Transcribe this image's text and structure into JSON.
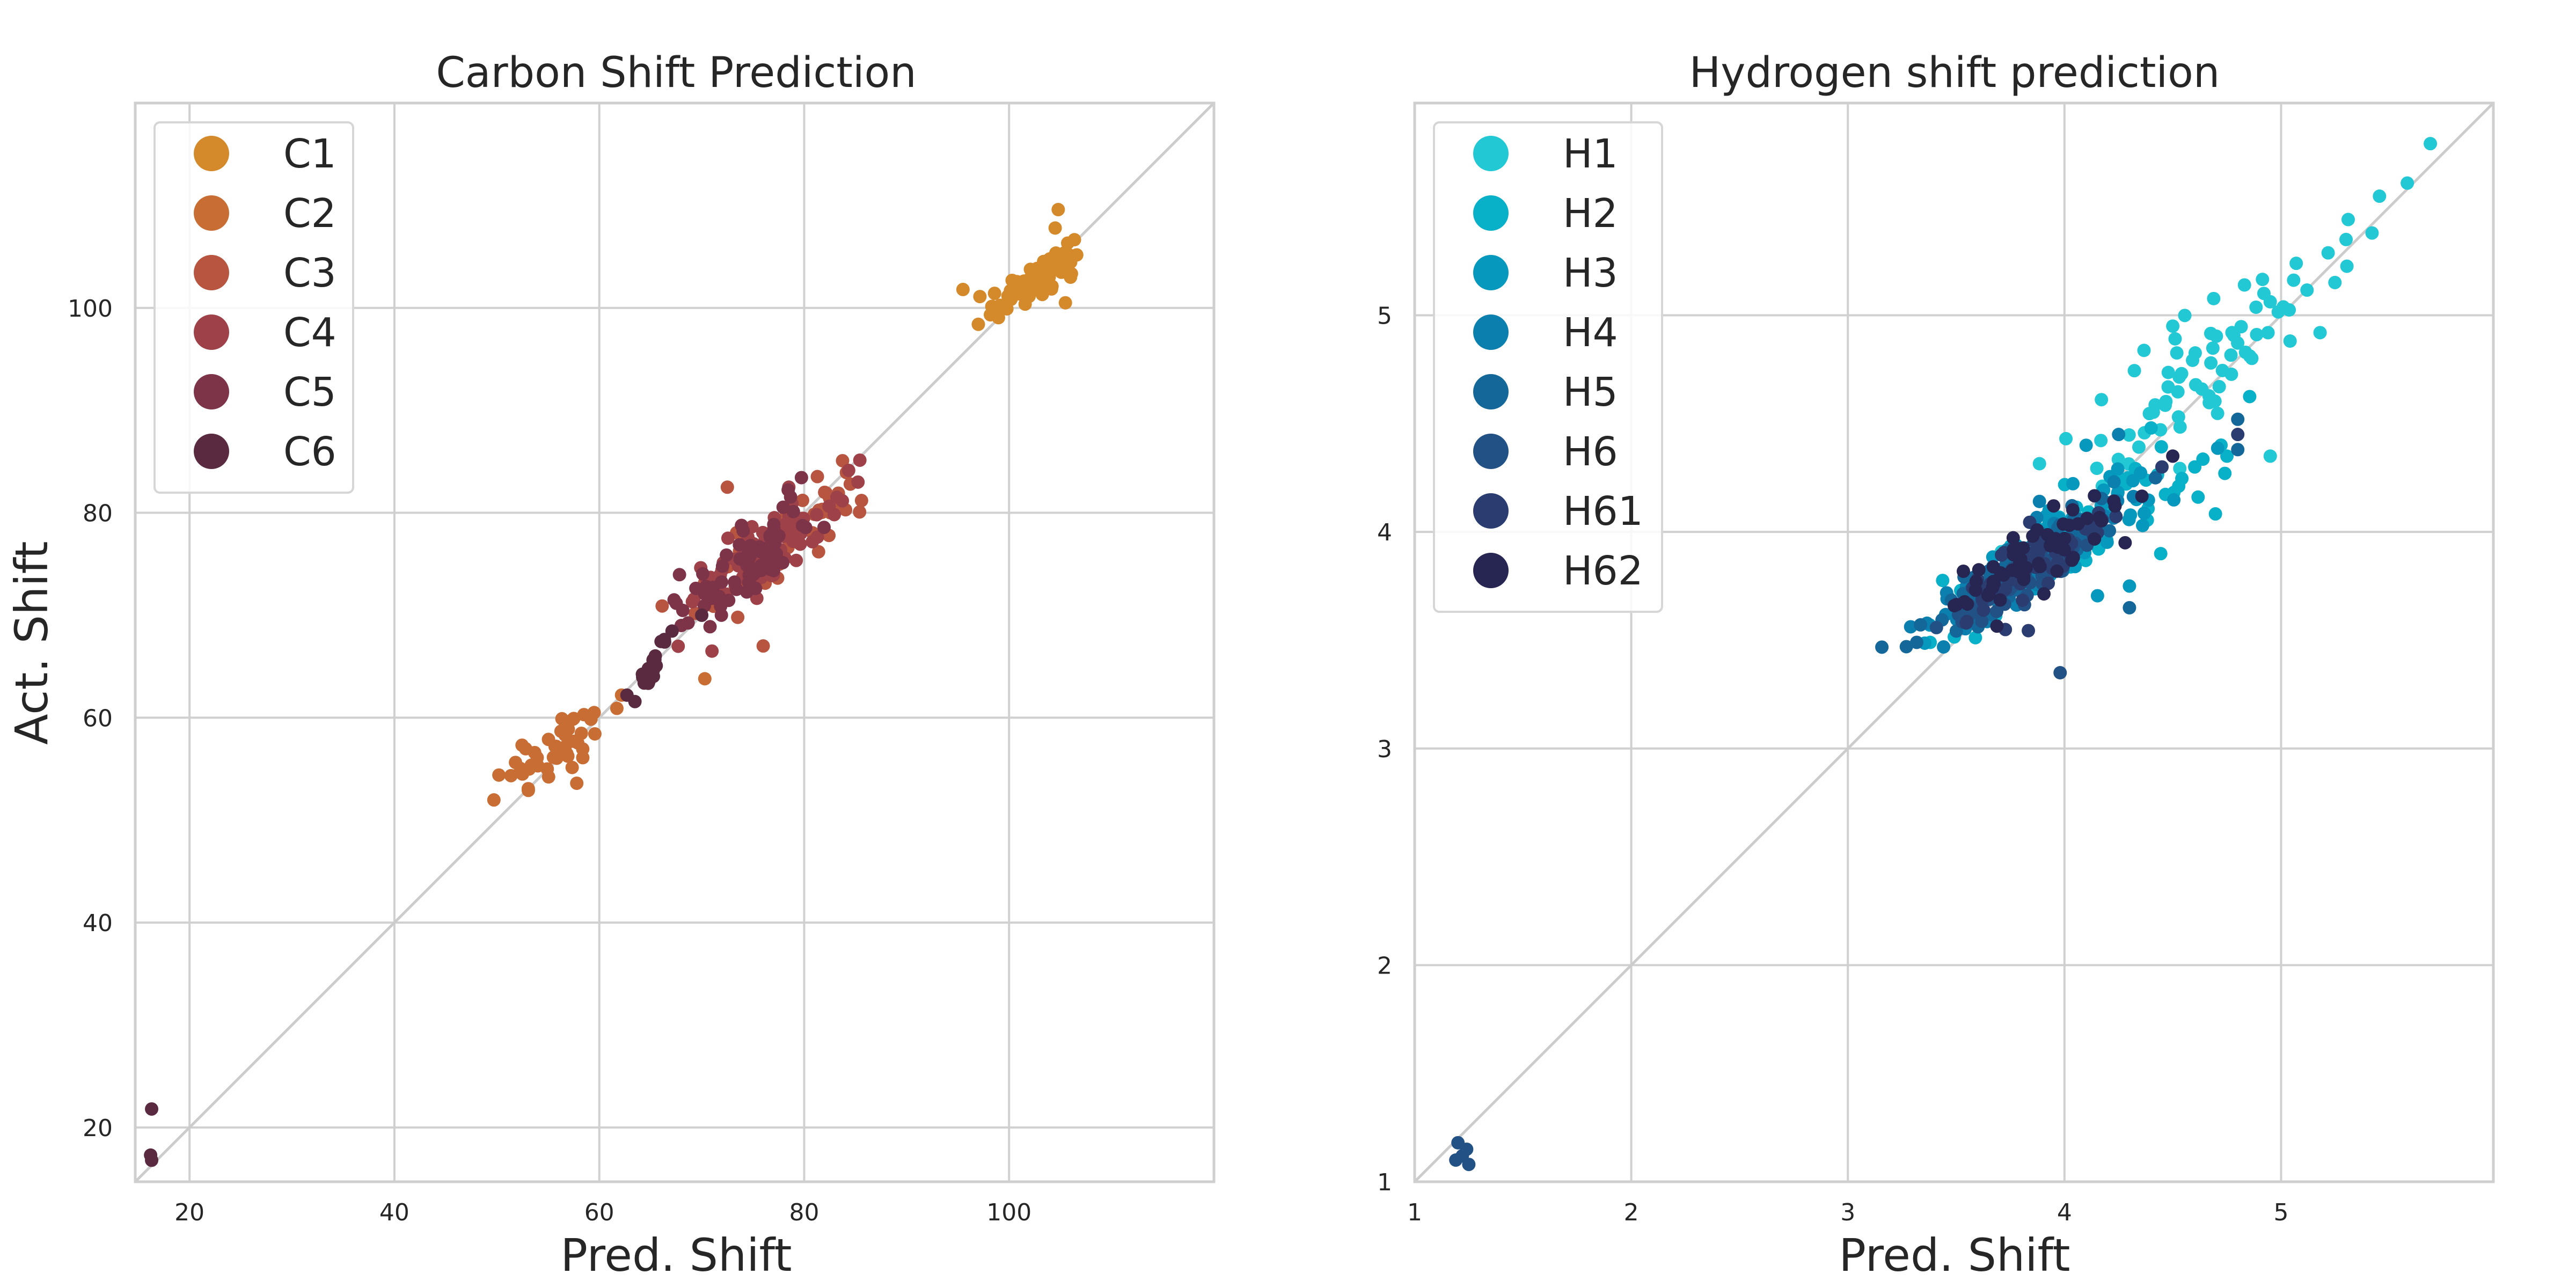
{
  "chart_data": [
    {
      "type": "scatter",
      "title": "Carbon Shift Prediction",
      "xlabel": "Pred. Shift",
      "ylabel": "Act. Shift",
      "xlim": [
        14.7,
        120
      ],
      "ylim": [
        14.7,
        120
      ],
      "xticks": [
        20,
        40,
        60,
        80,
        100
      ],
      "yticks": [
        20,
        40,
        60,
        80,
        100
      ],
      "grid": true,
      "legend_position": "top-left",
      "diagonal": true,
      "series": [
        {
          "name": "C1",
          "color": "#d4892a",
          "center": [
            102.3,
            102.6
          ],
          "spread": [
            2.3,
            1.6
          ],
          "count": 80,
          "extra": [
            [
              95.5,
              101.8
            ],
            [
              97.0,
              98.4
            ],
            [
              104.8,
              109.6
            ],
            [
              104.5,
              107.8
            ],
            [
              106.0,
              103.0
            ],
            [
              105.5,
              100.5
            ]
          ]
        },
        {
          "name": "C2",
          "color": "#c86d34",
          "center": [
            56.0,
            57.0
          ],
          "spread": [
            3.0,
            2.6
          ],
          "count": 40,
          "extra": [
            [
              50.2,
              54.4
            ],
            [
              52.5,
              54.5
            ],
            [
              57.8,
              53.6
            ],
            [
              58.5,
              60.3
            ],
            [
              59.5,
              60.5
            ],
            [
              70.3,
              63.8
            ],
            [
              54.0,
              55.3
            ]
          ]
        },
        {
          "name": "C3",
          "color": "#b75540",
          "center": [
            77.5,
            77.0
          ],
          "spread": [
            4.5,
            3.5
          ],
          "count": 60,
          "extra": [
            [
              84.5,
              82.8
            ],
            [
              82.0,
              82.0
            ],
            [
              72.5,
              82.5
            ],
            [
              76.0,
              67.0
            ]
          ]
        },
        {
          "name": "C4",
          "color": "#9e4148",
          "center": [
            76.5,
            76.5
          ],
          "spread": [
            4.0,
            3.5
          ],
          "count": 60,
          "extra": [
            [
              78.5,
              82.5
            ],
            [
              71.0,
              66.5
            ]
          ]
        },
        {
          "name": "C5",
          "color": "#7d3348",
          "center": [
            75.0,
            75.5
          ],
          "spread": [
            3.8,
            3.5
          ],
          "count": 70,
          "extra": [
            [
              67.3,
              71.5
            ],
            [
              68.0,
              69.0
            ]
          ]
        },
        {
          "name": "C6",
          "color": "#5a2a40",
          "center": [
            65.0,
            64.5
          ],
          "spread": [
            0.7,
            1.2
          ],
          "count": 30,
          "extra": [
            [
              16.3,
              21.8
            ],
            [
              16.2,
              17.3
            ],
            [
              16.3,
              16.8
            ],
            [
              62.7,
              62.2
            ],
            [
              70.0,
              70.0
            ]
          ]
        }
      ]
    },
    {
      "type": "scatter",
      "title": "Hydrogen shift prediction",
      "xlabel": "Pred. Shift",
      "ylabel": "",
      "xlim": [
        1.0,
        5.98
      ],
      "ylim": [
        1.0,
        5.98
      ],
      "xticks": [
        1,
        2,
        3,
        4,
        5
      ],
      "yticks": [
        1,
        2,
        3,
        4,
        5
      ],
      "grid": true,
      "legend_position": "top-left",
      "diagonal": true,
      "series": [
        {
          "name": "H1",
          "color": "#22c8d4",
          "center": [
            4.72,
            4.8
          ],
          "spread": [
            0.33,
            0.3
          ],
          "count": 75,
          "extra": [
            [
              5.3,
              5.35
            ],
            [
              5.42,
              5.38
            ],
            [
              5.07,
              5.24
            ],
            [
              5.18,
              4.92
            ],
            [
              4.95,
              4.35
            ],
            [
              4.5,
              4.95
            ]
          ]
        },
        {
          "name": "H2",
          "color": "#08b0c8",
          "center": [
            4.15,
            4.05
          ],
          "spread": [
            0.3,
            0.22
          ],
          "count": 60,
          "extra": [
            [
              3.38,
              3.49
            ],
            [
              3.5,
              3.62
            ],
            [
              4.4,
              4.48
            ],
            [
              4.75,
              4.35
            ]
          ]
        },
        {
          "name": "H3",
          "color": "#0699bd",
          "center": [
            4.05,
            3.98
          ],
          "spread": [
            0.3,
            0.22
          ],
          "count": 60,
          "extra": [
            [
              4.3,
              3.75
            ],
            [
              4.1,
              4.4
            ]
          ]
        },
        {
          "name": "H4",
          "color": "#0b80af",
          "center": [
            3.8,
            3.83
          ],
          "spread": [
            0.25,
            0.18
          ],
          "count": 60,
          "extra": [
            [
              4.25,
              4.45
            ]
          ]
        },
        {
          "name": "H5",
          "color": "#146899",
          "center": [
            3.75,
            3.78
          ],
          "spread": [
            0.22,
            0.15
          ],
          "count": 60,
          "extra": [
            [
              4.8,
              4.38
            ],
            [
              4.8,
              4.52
            ],
            [
              4.3,
              3.65
            ],
            [
              4.42,
              4.25
            ]
          ]
        },
        {
          "name": "H6",
          "color": "#225185",
          "center": [
            3.7,
            3.72
          ],
          "spread": [
            0.18,
            0.12
          ],
          "count": 45,
          "extra": [
            [
              1.2,
              1.18
            ],
            [
              1.22,
              1.12
            ],
            [
              1.25,
              1.08
            ],
            [
              1.24,
              1.15
            ],
            [
              1.19,
              1.1
            ],
            [
              3.98,
              3.35
            ]
          ]
        },
        {
          "name": "H61",
          "color": "#2b3d70",
          "center": [
            3.85,
            3.85
          ],
          "spread": [
            0.2,
            0.15
          ],
          "count": 55,
          "extra": [
            [
              4.8,
              4.45
            ],
            [
              4.45,
              4.3
            ]
          ]
        },
        {
          "name": "H62",
          "color": "#272552",
          "center": [
            3.9,
            3.9
          ],
          "spread": [
            0.2,
            0.13
          ],
          "count": 60,
          "extra": [
            [
              4.28,
              3.95
            ],
            [
              4.5,
              4.35
            ],
            [
              3.95,
              4.12
            ]
          ]
        }
      ]
    }
  ]
}
